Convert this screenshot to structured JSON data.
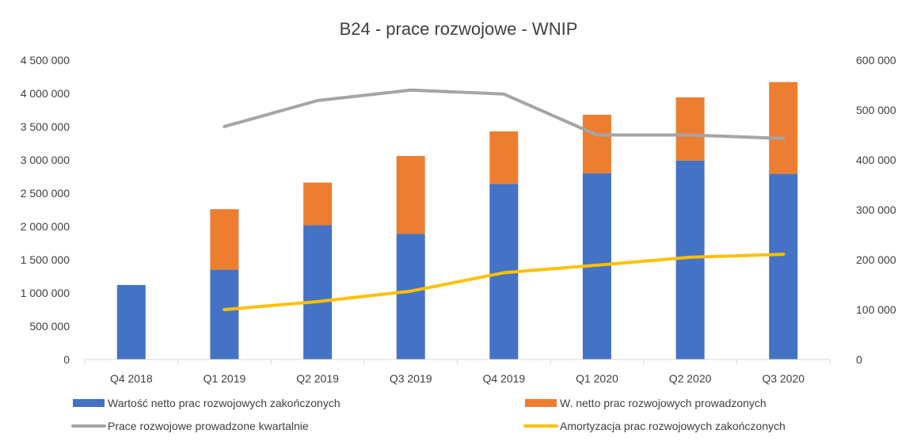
{
  "chart_data": {
    "type": "bar",
    "title": "B24 - prace rozwojowe - WNIP",
    "categories": [
      "Q4 2018",
      "Q1 2019",
      "Q2 2019",
      "Q3 2019",
      "Q4 2019",
      "Q1 2020",
      "Q2 2020",
      "Q3 2020"
    ],
    "y_left": {
      "min": 0,
      "max": 4500000,
      "step": 500000,
      "tick_labels": [
        "0",
        "500 000",
        "1 000 000",
        "1 500 000",
        "2 000 000",
        "2 500 000",
        "3 000 000",
        "3 500 000",
        "4 000 000",
        "4 500 000"
      ]
    },
    "y_right": {
      "min": 0,
      "max": 600000,
      "step": 100000,
      "tick_labels": [
        "0",
        "100 000",
        "200 000",
        "300 000",
        "400 000",
        "500 000",
        "600 000"
      ]
    },
    "grid": false,
    "legend_position": "bottom",
    "series": [
      {
        "name": "Wartość netto prac rozwojowych zakończonych",
        "kind": "bar-stacked",
        "axis": "left",
        "color": "#4472C4",
        "values": [
          1120000,
          1350000,
          2020000,
          1890000,
          2640000,
          2800000,
          2990000,
          2790000
        ]
      },
      {
        "name": "W. netto prac rozwojowych prowadzonych",
        "kind": "bar-stacked",
        "axis": "left",
        "color": "#ED7D31",
        "values": [
          0,
          910000,
          640000,
          1170000,
          790000,
          880000,
          950000,
          1380000
        ]
      },
      {
        "name": "Prace rozwojowe prowadzone kwartalnie",
        "kind": "line",
        "axis": "right",
        "color": "#A5A5A5",
        "values": [
          null,
          467000,
          519000,
          540000,
          532000,
          450000,
          450000,
          443000
        ]
      },
      {
        "name": "Amortyzacja prac rozwojowych zakończonych",
        "kind": "line",
        "axis": "right",
        "color": "#FFC000",
        "values": [
          null,
          100000,
          116000,
          137000,
          174000,
          189000,
          205000,
          211000
        ]
      }
    ]
  }
}
